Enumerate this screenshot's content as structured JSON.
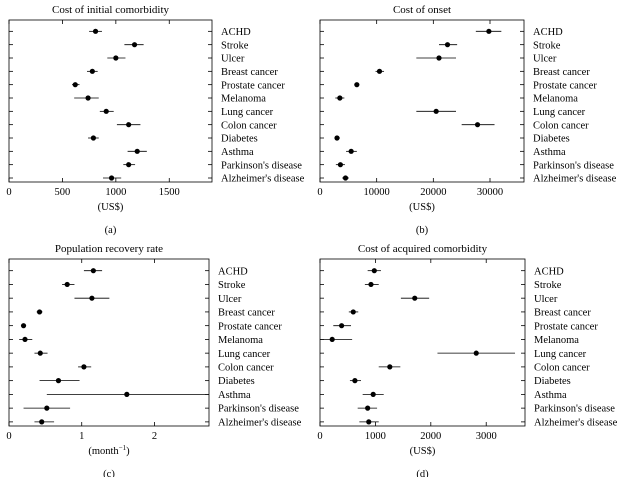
{
  "chart_data": [
    {
      "type": "scatter",
      "panel_label": "(a)",
      "title": "Cost of initial comorbidity",
      "xlabel": "(US$)",
      "xlim": [
        0,
        1900
      ],
      "xticks": [
        0,
        500,
        1000,
        1500
      ],
      "categories": [
        "ACHD",
        "Stroke",
        "Ulcer",
        "Breast cancer",
        "Prostate cancer",
        "Melanoma",
        "Lung cancer",
        "Colon cancer",
        "Diabetes",
        "Asthma",
        "Parkinson's disease",
        "Alzheimer's disease"
      ],
      "values": [
        810,
        1175,
        1000,
        780,
        620,
        740,
        910,
        1120,
        790,
        1200,
        1120,
        960
      ],
      "lower": [
        750,
        1080,
        920,
        730,
        590,
        610,
        850,
        1010,
        740,
        1110,
        1070,
        880
      ],
      "upper": [
        870,
        1260,
        1090,
        830,
        660,
        840,
        980,
        1230,
        840,
        1290,
        1180,
        1050
      ]
    },
    {
      "type": "scatter",
      "panel_label": "(b)",
      "title": "Cost of onset",
      "xlabel": "(US$)",
      "xlim": [
        0,
        36000
      ],
      "xticks": [
        0,
        10000,
        20000,
        30000
      ],
      "categories": [
        "ACHD",
        "Stroke",
        "Ulcer",
        "Breast cancer",
        "Prostate cancer",
        "Melanoma",
        "Lung cancer",
        "Colon cancer",
        "Diabetes",
        "Asthma",
        "Parkinson's disease",
        "Alzheimer's disease"
      ],
      "values": [
        29800,
        22500,
        21000,
        10500,
        6500,
        3500,
        20500,
        27800,
        3000,
        5500,
        3600,
        4500
      ],
      "lower": [
        27500,
        21000,
        17000,
        9800,
        6200,
        2700,
        17000,
        25000,
        2600,
        4600,
        2800,
        3900
      ],
      "upper": [
        32000,
        24200,
        24000,
        11300,
        6800,
        4300,
        24000,
        30800,
        3500,
        6500,
        4400,
        5100
      ]
    },
    {
      "type": "scatter",
      "panel_label": "(c)",
      "title": "Population recovery rate",
      "xlabel": "(month",
      "xlabel_superscript": "−1",
      "xlabel_suffix": ")",
      "xlim": [
        0,
        2.75
      ],
      "xticks": [
        0,
        1,
        2
      ],
      "categories": [
        "ACHD",
        "Stroke",
        "Ulcer",
        "Breast cancer",
        "Prostate cancer",
        "Melanoma",
        "Lung cancer",
        "Colon cancer",
        "Diabetes",
        "Asthma",
        "Parkinson's disease",
        "Alzheimer's disease"
      ],
      "values": [
        1.16,
        0.8,
        1.14,
        0.42,
        0.2,
        0.22,
        0.43,
        1.03,
        0.68,
        1.62,
        0.52,
        0.45
      ],
      "lower": [
        1.03,
        0.73,
        0.9,
        0.38,
        0.17,
        0.14,
        0.35,
        0.95,
        0.42,
        0.52,
        0.2,
        0.35
      ],
      "upper": [
        1.28,
        0.9,
        1.38,
        0.46,
        0.23,
        0.32,
        0.53,
        1.13,
        0.97,
        2.75,
        0.84,
        0.62
      ]
    },
    {
      "type": "scatter",
      "panel_label": "(d)",
      "title": "Cost of acquired comorbidity",
      "xlabel": "(US$)",
      "xlim": [
        0,
        3700
      ],
      "xticks": [
        0,
        1000,
        2000,
        3000
      ],
      "categories": [
        "ACHD",
        "Stroke",
        "Ulcer",
        "Breast cancer",
        "Prostate cancer",
        "Melanoma",
        "Lung cancer",
        "Colon cancer",
        "Diabetes",
        "Asthma",
        "Parkinson's disease",
        "Alzheimer's disease"
      ],
      "values": [
        980,
        920,
        1710,
        600,
        390,
        220,
        2820,
        1260,
        630,
        960,
        860,
        880
      ],
      "lower": [
        860,
        810,
        1460,
        520,
        240,
        0,
        2120,
        1060,
        540,
        770,
        680,
        710
      ],
      "upper": [
        1100,
        1060,
        1970,
        690,
        560,
        580,
        3520,
        1450,
        740,
        1150,
        1030,
        1060
      ]
    }
  ]
}
